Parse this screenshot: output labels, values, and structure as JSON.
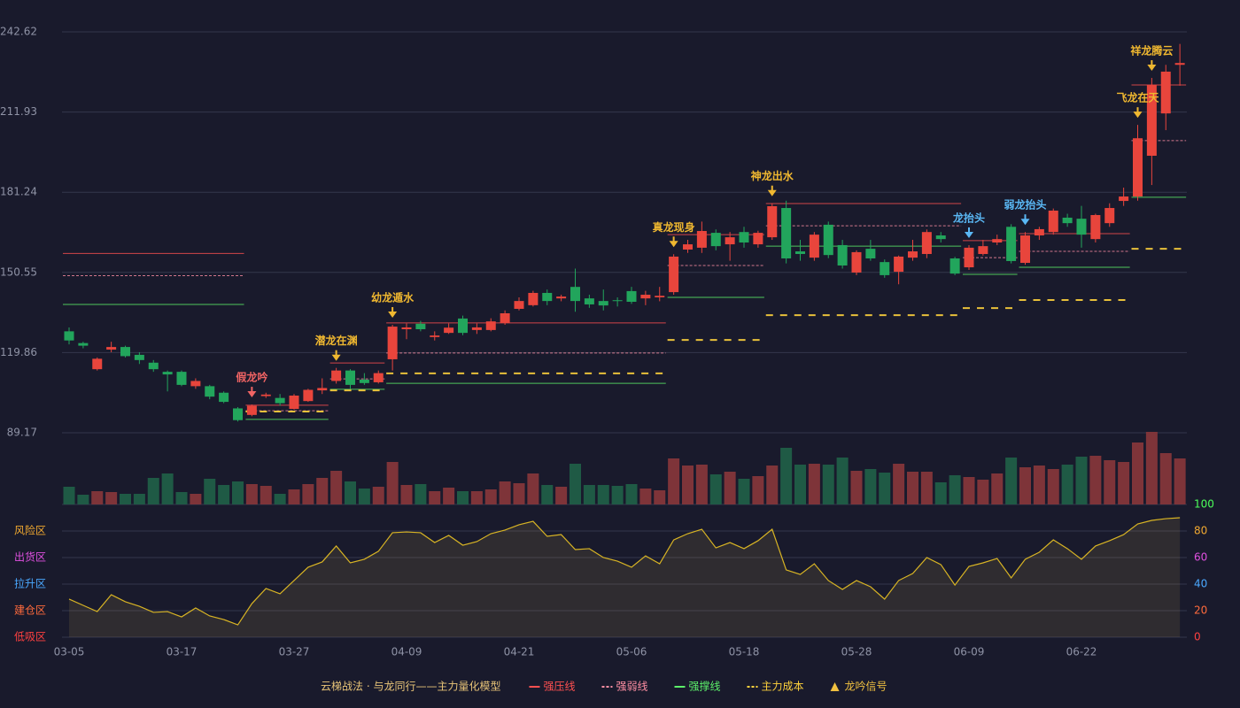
{
  "chart_data": [
    {
      "type": "candlestick",
      "categories": [
        "03-05",
        null,
        null,
        null,
        null,
        null,
        null,
        null,
        "03-17",
        null,
        null,
        null,
        null,
        null,
        null,
        null,
        "03-27",
        null,
        null,
        null,
        null,
        null,
        null,
        null,
        "04-09",
        null,
        null,
        null,
        null,
        null,
        null,
        null,
        "04-21",
        null,
        null,
        null,
        null,
        null,
        null,
        null,
        "05-06",
        null,
        null,
        null,
        null,
        null,
        null,
        null,
        "05-18",
        null,
        null,
        null,
        null,
        null,
        null,
        null,
        "05-28",
        null,
        null,
        null,
        null,
        null,
        null,
        null,
        "06-09",
        null,
        null,
        null,
        null,
        null,
        null,
        null,
        "06-22",
        null,
        null,
        null,
        null,
        null,
        null,
        null
      ],
      "open": [
        128,
        123.5,
        113.5,
        121,
        122,
        119,
        116,
        112.5,
        112.5,
        107,
        107,
        104.5,
        98.5,
        96,
        103.2,
        102.5,
        98.3,
        101.3,
        105.4,
        109,
        113,
        109.5,
        108.5,
        117.3,
        128.8,
        130.9,
        125.8,
        127.4,
        132.9,
        128.5,
        128.5,
        131.2,
        136.6,
        138,
        142.7,
        140.6,
        145,
        140.6,
        139.6,
        139.9,
        143.4,
        140.6,
        141,
        143,
        159.3,
        160,
        165.7,
        161.3,
        166,
        161.3,
        164,
        175.2,
        158.6,
        156.2,
        168.8,
        161,
        150.5,
        159.6,
        154.5,
        150.8,
        156.2,
        157.6,
        164.7,
        155.9,
        152.5,
        157.6,
        162,
        168,
        154.2,
        164.7,
        166,
        171.5,
        171.1,
        163.3,
        169.4,
        177.9,
        179.6,
        195.2,
        211.4,
        230
      ],
      "high": [
        129.5,
        124,
        118,
        124,
        122.5,
        120,
        117,
        113,
        113,
        110,
        107.5,
        105,
        99,
        100,
        104.5,
        104,
        104,
        106,
        110,
        114,
        113.5,
        112,
        113,
        130.5,
        131,
        132,
        128,
        131,
        134,
        131,
        133,
        136,
        141,
        143.5,
        144,
        142,
        152,
        142,
        144,
        141,
        145,
        143.5,
        145,
        157.5,
        163,
        170,
        167,
        166,
        168,
        166.5,
        177,
        178,
        163,
        166,
        170,
        163,
        159,
        163,
        155.5,
        157,
        163,
        167,
        166,
        156.5,
        161,
        163,
        165,
        169,
        166,
        168,
        175,
        173,
        176,
        173,
        177,
        183,
        207,
        225,
        230,
        238
      ],
      "low": [
        123,
        121.5,
        113,
        120,
        118,
        115.5,
        112.5,
        105,
        107,
        106,
        102,
        100.5,
        93.5,
        95.5,
        102.5,
        99.5,
        98,
        101,
        104,
        108,
        106,
        107.5,
        108,
        113,
        125,
        128,
        124.5,
        127,
        126.5,
        127,
        128,
        130.5,
        136,
        137.5,
        138,
        139.5,
        135.5,
        137,
        136,
        137.5,
        138.5,
        138,
        139.5,
        142,
        158,
        158,
        159,
        155,
        160,
        160,
        163,
        154,
        155,
        155,
        156,
        152,
        149.5,
        155,
        148.5,
        146,
        155,
        156,
        162,
        149.5,
        151.5,
        157,
        161,
        154,
        153.5,
        163,
        165,
        168,
        160,
        162,
        168,
        176,
        178,
        184,
        205,
        222
      ],
      "close": [
        124.5,
        122.5,
        117.5,
        122,
        118.5,
        117,
        113.5,
        111.5,
        107.5,
        109,
        103,
        101,
        94,
        99.5,
        103.8,
        100.5,
        103.4,
        105.6,
        106.3,
        113,
        107.5,
        108.2,
        112,
        129.8,
        129.5,
        128.8,
        126.4,
        129.4,
        127.4,
        129.5,
        131.8,
        134.9,
        139.6,
        142.7,
        139.6,
        141.3,
        139.6,
        138.3,
        137.9,
        139.6,
        139.3,
        142,
        141.6,
        156.6,
        161.3,
        166.4,
        160.6,
        164,
        162,
        165.7,
        175.9,
        155.9,
        157.6,
        165,
        157.2,
        153.2,
        158.3,
        155.9,
        149.5,
        156.6,
        158.6,
        166,
        163.3,
        150.1,
        160,
        160.6,
        163.3,
        154.9,
        164.7,
        167.1,
        174.2,
        169.4,
        165,
        172.5,
        175.2,
        179.6,
        201.9,
        222.3,
        227.4,
        230.7
      ],
      "up_color": "#e8453c",
      "down_color": "#22a55c",
      "ylim": [
        89.17,
        242.62
      ],
      "yticks": [
        89.17,
        119.86,
        150.55,
        181.24,
        211.93,
        242.62
      ],
      "grid": true,
      "signals": [
        {
          "index": 13,
          "label": "假龙吟",
          "color": "#f06464"
        },
        {
          "index": 19,
          "label": "潜龙在渊",
          "color": "#f0b830"
        },
        {
          "index": 23,
          "label": "幼龙遁水",
          "color": "#f0b830"
        },
        {
          "index": 43,
          "label": "真龙现身",
          "color": "#f0b830"
        },
        {
          "index": 50,
          "label": "神龙出水",
          "color": "#f0b830"
        },
        {
          "index": 64,
          "label": "龙抬头",
          "color": "#5ab8f5"
        },
        {
          "index": 68,
          "label": "弱龙抬头",
          "color": "#5ab8f5"
        },
        {
          "index": 76,
          "label": "飞龙在天",
          "color": "#f0b830"
        },
        {
          "index": 77,
          "label": "祥龙腾云",
          "color": "#f0b830"
        }
      ],
      "levels": [
        {
          "start": 0,
          "end": 12,
          "resistance": 157.8,
          "weak": 149.3,
          "support": 138.3,
          "cost": null
        },
        {
          "start": 13,
          "end": 18,
          "resistance": 99.7,
          "weak": 97.6,
          "support": 94.3,
          "cost": 97.3
        },
        {
          "start": 19,
          "end": 22,
          "resistance": 115.9,
          "weak": 109.8,
          "support": 105.8,
          "cost": 105.4
        },
        {
          "start": 23,
          "end": 42,
          "resistance": 131.2,
          "weak": 119.7,
          "support": 108.1,
          "cost": 111.9
        },
        {
          "start": 43,
          "end": 49,
          "resistance": 165,
          "weak": 153.2,
          "support": 141,
          "cost": 124.7
        },
        {
          "start": 50,
          "end": 63,
          "resistance": 176.9,
          "weak": 168.4,
          "support": 160.6,
          "cost": 134.2
        },
        {
          "start": 64,
          "end": 67,
          "resistance": 162.7,
          "weak": 156.2,
          "support": 149.8,
          "cost": 136.9
        },
        {
          "start": 68,
          "end": 75,
          "resistance": 165.4,
          "weak": 158.6,
          "support": 152.5,
          "cost": 140
        },
        {
          "start": 76,
          "end": 79,
          "resistance": 222.3,
          "weak": 201,
          "support": 179.3,
          "cost": 159.6
        }
      ],
      "legend": {
        "title": "云梯战法 · 与龙同行——主力量化模型",
        "title_color": "#e8c478",
        "items": [
          {
            "label": "强压线",
            "color": "#ff5050",
            "style": "solid"
          },
          {
            "label": "强弱线",
            "color": "#ff8fa3",
            "style": "dotted"
          },
          {
            "label": "强撑线",
            "color": "#5cf06a",
            "style": "solid"
          },
          {
            "label": "主力成本",
            "color": "#ffd23c",
            "style": "dashed"
          },
          {
            "label": "龙吟信号",
            "color": "#f0c040",
            "style": "triangle"
          }
        ]
      }
    },
    {
      "type": "bar",
      "values": [
        20,
        11,
        15,
        14,
        12,
        12,
        30,
        35,
        14,
        12,
        29,
        22,
        26,
        23,
        21,
        12,
        17,
        23,
        30,
        38,
        26,
        18,
        20,
        48,
        22,
        23,
        15,
        19,
        15,
        15,
        17,
        26,
        24,
        35,
        22,
        20,
        46,
        22,
        22,
        21,
        23,
        18,
        16,
        52,
        44,
        45,
        34,
        37,
        29,
        32,
        44,
        64,
        45,
        46,
        45,
        53,
        38,
        40,
        36,
        46,
        37,
        37,
        25,
        33,
        31,
        28,
        35,
        53,
        42,
        44,
        40,
        45,
        54,
        55,
        50,
        48,
        70,
        82,
        58,
        52
      ],
      "up_color": "#7e3439",
      "down_color": "#1f5a45"
    },
    {
      "type": "line",
      "values": [
        28.7,
        24,
        19.3,
        32,
        26.7,
        23.3,
        18.7,
        19.3,
        15.3,
        22,
        16,
        13.3,
        9.3,
        25.3,
        36.7,
        32.7,
        42.7,
        52.7,
        56.7,
        68.7,
        56,
        58.7,
        64.7,
        78.7,
        79.3,
        78.7,
        71.3,
        76.7,
        69.3,
        72,
        78,
        80.7,
        84.7,
        87.3,
        76,
        77.3,
        66,
        66.7,
        60,
        57.3,
        52.7,
        61.3,
        55.3,
        73.3,
        78,
        81.3,
        67.3,
        71.3,
        66.7,
        72.7,
        81.3,
        50.7,
        47.3,
        55.3,
        42.7,
        36,
        42.7,
        38,
        28.7,
        42.7,
        48,
        60,
        54.7,
        39.3,
        53.3,
        56,
        59.3,
        44.7,
        58.7,
        64,
        73.3,
        66.7,
        58.7,
        68.7,
        72.7,
        77.3,
        85.3,
        88,
        89.3,
        90
      ],
      "color": "#d8b424",
      "ylim": [
        0,
        100
      ],
      "yticks": [
        0,
        20,
        40,
        60,
        80,
        100
      ],
      "ytick_colors": [
        "#ff4040",
        "#ff6a3c",
        "#4aa8ff",
        "#e050e0",
        "#f0a830",
        "#4cff5a"
      ],
      "zone_labels": [
        "低吸区",
        "建仓区",
        "拉升区",
        "出货区",
        "风险区"
      ],
      "zone_colors": [
        "#ff4040",
        "#ff6a3c",
        "#4aa8ff",
        "#e050e0",
        "#f0a830"
      ],
      "grid": true
    }
  ]
}
